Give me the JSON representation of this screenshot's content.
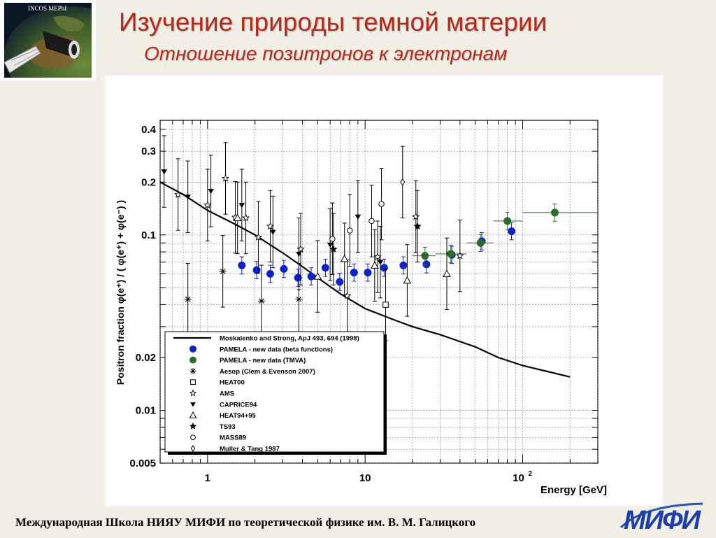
{
  "header": {
    "logo_caption": "INCOS MEPhI",
    "title": "Изучение природы темной материи",
    "subtitle": "Отношение позитронов к электронам"
  },
  "footer": {
    "text": "Международная Школа НИЯУ МИФИ по теоретической физике им. В. М. Галицкого",
    "logo_text": "МИФИ"
  },
  "colors": {
    "title": "#b52a1c",
    "pamela_beta": "#0b23c8",
    "pamela_tmva": "#2d6b2d",
    "background": "#f1efe5"
  },
  "chart_data": {
    "type": "scatter",
    "xscale": "log",
    "yscale": "log",
    "xlim": [
      0.5,
      300
    ],
    "ylim": [
      0.005,
      0.45
    ],
    "xlabel": "Energy [GeV]",
    "ylabel": "Positron fraction φ(e⁺) / ( φ(e⁺) + φ(e⁻) )",
    "xticks": [
      {
        "value": 1,
        "label": "1"
      },
      {
        "value": 10,
        "label": "10"
      },
      {
        "value": 100,
        "label": "10²"
      }
    ],
    "yticks": [
      {
        "value": 0.005,
        "label": "0.005"
      },
      {
        "value": 0.01,
        "label": "0.01"
      },
      {
        "value": 0.02,
        "label": "0.02"
      },
      {
        "value": 0.1,
        "label": "0.1"
      },
      {
        "value": 0.2,
        "label": "0.2"
      },
      {
        "value": 0.3,
        "label": "0.3"
      },
      {
        "value": 0.4,
        "label": "0.4"
      }
    ],
    "grid": true,
    "legend_position": "bottom-left",
    "curve": {
      "name": "Moskalenko and Strong, ApJ 493, 694 (1998)",
      "x": [
        0.5,
        0.7,
        1,
        1.5,
        2,
        3,
        4,
        5,
        7,
        10,
        15,
        20,
        30,
        50,
        70,
        100,
        150,
        200
      ],
      "y": [
        0.2,
        0.17,
        0.138,
        0.115,
        0.1,
        0.079,
        0.066,
        0.057,
        0.046,
        0.038,
        0.033,
        0.03,
        0.027,
        0.023,
        0.02,
        0.018,
        0.0165,
        0.0155
      ]
    },
    "series": [
      {
        "name": "PAMELA - new data (beta functions)",
        "marker": "filled-circle",
        "color": "#0b23c8",
        "points": [
          {
            "x": 1.65,
            "y": 0.067
          },
          {
            "x": 2.05,
            "y": 0.063
          },
          {
            "x": 2.5,
            "y": 0.06
          },
          {
            "x": 3.05,
            "y": 0.064
          },
          {
            "x": 3.75,
            "y": 0.057
          },
          {
            "x": 4.55,
            "y": 0.058
          },
          {
            "x": 5.6,
            "y": 0.065
          },
          {
            "x": 6.9,
            "y": 0.054
          },
          {
            "x": 8.5,
            "y": 0.061
          },
          {
            "x": 10.4,
            "y": 0.061
          },
          {
            "x": 13.2,
            "y": 0.065
          },
          {
            "x": 17.5,
            "y": 0.067
          },
          {
            "x": 24.5,
            "y": 0.068
          },
          {
            "x": 35.5,
            "y": 0.077
          },
          {
            "x": 55,
            "y": 0.092
          },
          {
            "x": 85,
            "y": 0.105
          }
        ]
      },
      {
        "name": "PAMELA - new data (TMVA)",
        "marker": "filled-circle",
        "color": "#2d6b2d",
        "points": [
          {
            "x": 24,
            "y": 0.076,
            "xlo": 20,
            "xhi": 28
          },
          {
            "x": 35,
            "y": 0.078,
            "xlo": 28,
            "xhi": 44
          },
          {
            "x": 54,
            "y": 0.09,
            "xlo": 44,
            "xhi": 65
          },
          {
            "x": 80,
            "y": 0.12,
            "xlo": 65,
            "xhi": 100
          },
          {
            "x": 160,
            "y": 0.134,
            "xlo": 100,
            "xhi": 300
          }
        ]
      },
      {
        "name": "Aesop (Clem & Evenson 2007)",
        "marker": "asterisk",
        "points": [
          {
            "x": 0.75,
            "y": 0.043
          },
          {
            "x": 1.25,
            "y": 0.062
          },
          {
            "x": 2.2,
            "y": 0.042
          },
          {
            "x": 3.8,
            "y": 0.043
          }
        ]
      },
      {
        "name": "HEAT00",
        "marker": "open-square",
        "points": [
          {
            "x": 13.5,
            "y": 0.04
          }
        ]
      },
      {
        "name": "AMS",
        "marker": "open-star",
        "points": [
          {
            "x": 0.65,
            "y": 0.17
          },
          {
            "x": 1.0,
            "y": 0.148
          },
          {
            "x": 1.3,
            "y": 0.21
          },
          {
            "x": 1.5,
            "y": 0.126
          },
          {
            "x": 1.75,
            "y": 0.125
          },
          {
            "x": 2.1,
            "y": 0.097
          },
          {
            "x": 2.5,
            "y": 0.112
          },
          {
            "x": 3.9,
            "y": 0.083
          },
          {
            "x": 7.7,
            "y": 0.045
          },
          {
            "x": 12,
            "y": 0.075
          },
          {
            "x": 21,
            "y": 0.127
          },
          {
            "x": 40,
            "y": 0.076
          }
        ]
      },
      {
        "name": "CAPRICE94",
        "marker": "filled-triangle-down",
        "points": [
          {
            "x": 0.53,
            "y": 0.23
          },
          {
            "x": 0.75,
            "y": 0.165
          },
          {
            "x": 1.05,
            "y": 0.178
          },
          {
            "x": 1.65,
            "y": 0.148
          },
          {
            "x": 2.6,
            "y": 0.104
          },
          {
            "x": 3.8,
            "y": 0.078
          },
          {
            "x": 6.0,
            "y": 0.088
          },
          {
            "x": 9.0,
            "y": 0.127
          },
          {
            "x": 12.5,
            "y": 0.07
          }
        ]
      },
      {
        "name": "HEAT94+95",
        "marker": "open-triangle",
        "points": [
          {
            "x": 1.55,
            "y": 0.125
          },
          {
            "x": 5.0,
            "y": 0.058
          },
          {
            "x": 7.4,
            "y": 0.073
          },
          {
            "x": 11.5,
            "y": 0.067
          },
          {
            "x": 18.5,
            "y": 0.055
          },
          {
            "x": 33,
            "y": 0.06
          }
        ]
      },
      {
        "name": "TS93",
        "marker": "filled-star",
        "points": [
          {
            "x": 6.3,
            "y": 0.083
          },
          {
            "x": 21.5,
            "y": 0.112
          }
        ]
      },
      {
        "name": "MASS89",
        "marker": "open-circle",
        "points": [
          {
            "x": 6.2,
            "y": 0.095
          },
          {
            "x": 8.0,
            "y": 0.106
          },
          {
            "x": 11.0,
            "y": 0.12
          },
          {
            "x": 12.7,
            "y": 0.15
          }
        ]
      },
      {
        "name": "Muller & Tang 1987",
        "marker": "open-diamond",
        "points": [
          {
            "x": 17.3,
            "y": 0.2
          }
        ]
      }
    ]
  }
}
